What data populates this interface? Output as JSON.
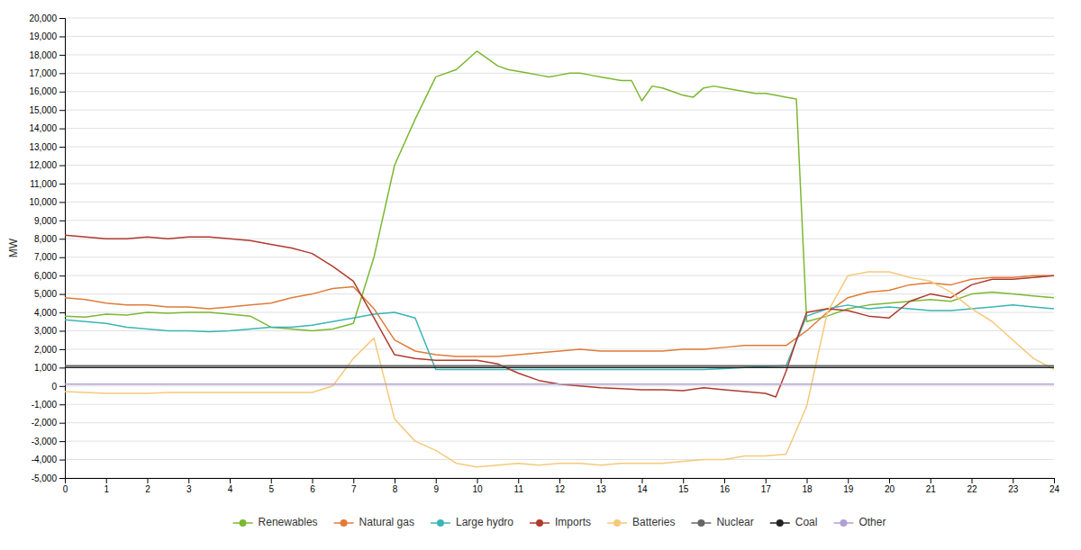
{
  "chart_data": {
    "type": "line",
    "ylabel": "MW",
    "xlim": [
      0,
      24
    ],
    "ylim": [
      -5000,
      20000
    ],
    "xticks": [
      0,
      1,
      2,
      3,
      4,
      5,
      6,
      7,
      8,
      9,
      10,
      11,
      12,
      13,
      14,
      15,
      16,
      17,
      18,
      19,
      20,
      21,
      22,
      23,
      24
    ],
    "yticks": [
      {
        "value": -5000,
        "label": "-5,000"
      },
      {
        "value": -4000,
        "label": "-4,000"
      },
      {
        "value": -3000,
        "label": "-3,000"
      },
      {
        "value": -2000,
        "label": "-2,000"
      },
      {
        "value": -1000,
        "label": "-1,000"
      },
      0,
      {
        "value": 1000,
        "label": "1,000"
      },
      {
        "value": 2000,
        "label": "2,000"
      },
      {
        "value": 3000,
        "label": "3,000"
      },
      {
        "value": 4000,
        "label": "4,000"
      },
      {
        "value": 5000,
        "label": "5,000"
      },
      {
        "value": 6000,
        "label": "6,000"
      },
      {
        "value": 7000,
        "label": "7,000"
      },
      {
        "value": 8000,
        "label": "8,000"
      },
      {
        "value": 9000,
        "label": "9,000"
      },
      {
        "value": 10000,
        "label": "10,000"
      },
      {
        "value": 11000,
        "label": "11,000"
      },
      {
        "value": 12000,
        "label": "12,000"
      },
      {
        "value": 13000,
        "label": "13,000"
      },
      {
        "value": 14000,
        "label": "14,000"
      },
      {
        "value": 15000,
        "label": "15,000"
      },
      {
        "value": 16000,
        "label": "16,000"
      },
      {
        "value": 17000,
        "label": "17,000"
      },
      {
        "value": 18000,
        "label": "18,000"
      },
      {
        "value": 19000,
        "label": "19,000"
      },
      {
        "value": 20000,
        "label": "20,000"
      }
    ],
    "grid": true,
    "legend": "bottom",
    "series": [
      {
        "name": "Renewables",
        "color": "#7cb832",
        "x": [
          0,
          0.5,
          1,
          1.5,
          2,
          2.5,
          3,
          3.5,
          4,
          4.5,
          5,
          5.5,
          6,
          6.5,
          7,
          7.5,
          8,
          8.5,
          9,
          9.5,
          10,
          10.25,
          10.5,
          10.75,
          11,
          11.25,
          11.5,
          11.75,
          12,
          12.25,
          12.5,
          12.75,
          13,
          13.25,
          13.5,
          13.75,
          14,
          14.25,
          14.5,
          14.75,
          15,
          15.25,
          15.5,
          15.75,
          16,
          16.25,
          16.5,
          16.75,
          17,
          17.25,
          17.5,
          17.75,
          18,
          18.5,
          19,
          19.5,
          20,
          20.5,
          21,
          21.5,
          22,
          22.5,
          23,
          23.5,
          24
        ],
        "values": [
          3800,
          3750,
          3900,
          3850,
          4000,
          3950,
          4000,
          4000,
          3900,
          3800,
          3200,
          3100,
          3000,
          3100,
          3400,
          7000,
          12000,
          14500,
          16800,
          17200,
          18200,
          17800,
          17400,
          17200,
          17100,
          17000,
          16900,
          16800,
          16900,
          17000,
          17000,
          16900,
          16800,
          16700,
          16600,
          16600,
          15500,
          16300,
          16200,
          16000,
          15800,
          15700,
          16200,
          16300,
          16200,
          16100,
          16000,
          15900,
          15900,
          15800,
          15700,
          15600,
          3500,
          3800,
          4200,
          4400,
          4500,
          4600,
          4700,
          4600,
          5000,
          5100,
          5000,
          4900,
          4800
        ]
      },
      {
        "name": "Natural gas",
        "color": "#e07b39",
        "x": [
          0,
          0.5,
          1,
          1.5,
          2,
          2.5,
          3,
          3.5,
          4,
          4.5,
          5,
          5.5,
          6,
          6.5,
          7,
          7.5,
          8,
          8.5,
          9,
          9.5,
          10,
          10.5,
          11,
          11.5,
          12,
          12.5,
          13,
          13.5,
          14,
          14.5,
          15,
          15.5,
          16,
          16.5,
          17,
          17.5,
          18,
          18.5,
          19,
          19.5,
          20,
          20.5,
          21,
          21.5,
          22,
          22.5,
          23,
          23.5,
          24
        ],
        "values": [
          4800,
          4700,
          4500,
          4400,
          4400,
          4300,
          4300,
          4200,
          4300,
          4400,
          4500,
          4800,
          5000,
          5300,
          5400,
          4200,
          2500,
          1900,
          1700,
          1600,
          1600,
          1600,
          1700,
          1800,
          1900,
          2000,
          1900,
          1900,
          1900,
          1900,
          2000,
          2000,
          2100,
          2200,
          2200,
          2200,
          3000,
          4000,
          4800,
          5100,
          5200,
          5500,
          5600,
          5500,
          5800,
          5900,
          5900,
          6000,
          6000
        ]
      },
      {
        "name": "Large hydro",
        "color": "#3ab5b5",
        "x": [
          0,
          0.5,
          1,
          1.5,
          2,
          2.5,
          3,
          3.5,
          4,
          4.5,
          5,
          5.5,
          6,
          6.5,
          7,
          7.5,
          8,
          8.5,
          9,
          9.5,
          10,
          10.5,
          11,
          11.5,
          12,
          12.5,
          13,
          13.5,
          14,
          14.5,
          15,
          15.5,
          16,
          16.5,
          17,
          17.5,
          18,
          18.5,
          19,
          19.5,
          20,
          20.5,
          21,
          21.5,
          22,
          22.5,
          23,
          23.5,
          24
        ],
        "values": [
          3600,
          3500,
          3400,
          3200,
          3100,
          3000,
          3000,
          2950,
          3000,
          3100,
          3200,
          3200,
          3300,
          3500,
          3700,
          3900,
          4000,
          3700,
          900,
          900,
          900,
          900,
          900,
          900,
          900,
          900,
          900,
          900,
          900,
          900,
          900,
          900,
          950,
          1000,
          1050,
          1100,
          3800,
          4200,
          4400,
          4200,
          4300,
          4200,
          4100,
          4100,
          4200,
          4300,
          4400,
          4300,
          4200
        ]
      },
      {
        "name": "Imports",
        "color": "#b03a2e",
        "x": [
          0,
          0.5,
          1,
          1.5,
          2,
          2.5,
          3,
          3.5,
          4,
          4.5,
          5,
          5.5,
          6,
          6.5,
          7,
          7.5,
          8,
          8.5,
          9,
          9.5,
          10,
          10.5,
          11,
          11.5,
          12,
          12.5,
          13,
          13.5,
          14,
          14.5,
          15,
          15.5,
          16,
          16.5,
          17,
          17.25,
          17.5,
          17.75,
          18,
          18.5,
          19,
          19.5,
          20,
          20.5,
          21,
          21.5,
          22,
          22.5,
          23,
          23.5,
          24
        ],
        "values": [
          8200,
          8100,
          8000,
          8000,
          8100,
          8000,
          8100,
          8100,
          8000,
          7900,
          7700,
          7500,
          7200,
          6500,
          5700,
          3700,
          1700,
          1500,
          1400,
          1400,
          1400,
          1200,
          700,
          300,
          100,
          0,
          -100,
          -150,
          -200,
          -200,
          -250,
          -100,
          -200,
          -300,
          -400,
          -600,
          800,
          2500,
          4000,
          4200,
          4100,
          3800,
          3700,
          4600,
          5000,
          4800,
          5500,
          5800,
          5800,
          5900,
          6000
        ]
      },
      {
        "name": "Batteries",
        "color": "#f5c97a",
        "x": [
          0,
          0.5,
          1,
          1.5,
          2,
          2.5,
          3,
          3.5,
          4,
          4.5,
          5,
          5.5,
          6,
          6.5,
          7,
          7.5,
          8,
          8.5,
          9,
          9.5,
          10,
          10.5,
          11,
          11.5,
          12,
          12.5,
          13,
          13.5,
          14,
          14.5,
          15,
          15.5,
          16,
          16.5,
          17,
          17.5,
          18,
          18.5,
          19,
          19.5,
          20,
          20.5,
          21,
          21.5,
          22,
          22.5,
          23,
          23.5,
          24
        ],
        "values": [
          -300,
          -350,
          -400,
          -400,
          -400,
          -350,
          -350,
          -350,
          -350,
          -350,
          -350,
          -350,
          -350,
          0,
          1500,
          2600,
          -1800,
          -3000,
          -3500,
          -4200,
          -4400,
          -4300,
          -4200,
          -4300,
          -4200,
          -4200,
          -4300,
          -4200,
          -4200,
          -4200,
          -4100,
          -4000,
          -4000,
          -3800,
          -3800,
          -3700,
          -1100,
          4000,
          6000,
          6200,
          6200,
          5900,
          5700,
          5100,
          4200,
          3500,
          2500,
          1500,
          900
        ]
      },
      {
        "name": "Nuclear",
        "color": "#666666",
        "x": [
          0,
          24
        ],
        "values": [
          1100,
          1100
        ]
      },
      {
        "name": "Coal",
        "color": "#222222",
        "x": [
          0,
          24
        ],
        "values": [
          1000,
          1000
        ]
      },
      {
        "name": "Other",
        "color": "#b0a0d0",
        "x": [
          0,
          24
        ],
        "values": [
          100,
          100
        ]
      }
    ]
  }
}
